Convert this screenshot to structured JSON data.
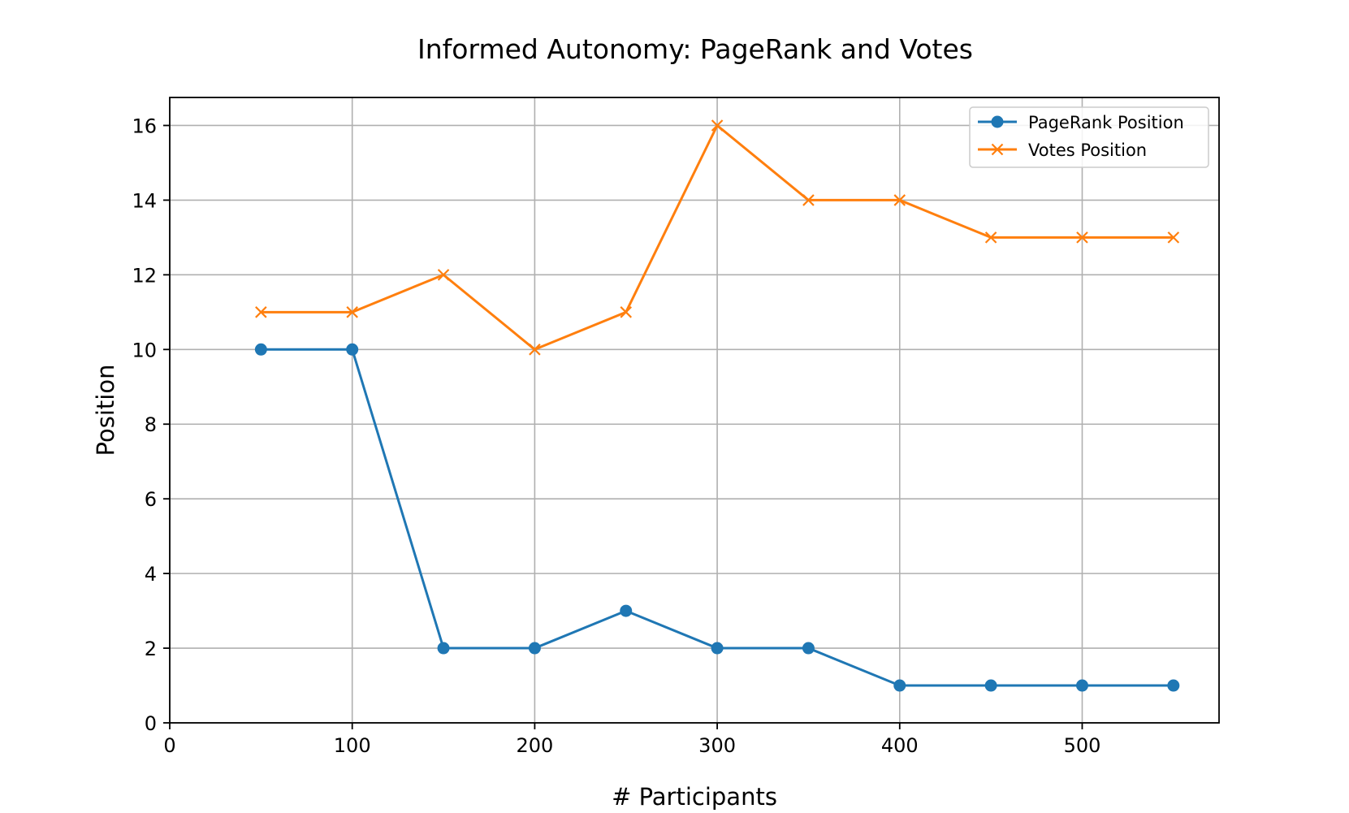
{
  "chart_data": {
    "type": "line",
    "title": "Informed Autonomy: PageRank and Votes",
    "xlabel": "# Participants",
    "ylabel": "Position",
    "x": [
      50,
      100,
      150,
      200,
      250,
      300,
      350,
      400,
      450,
      500,
      550
    ],
    "xlim": [
      0,
      575
    ],
    "ylim": [
      0,
      16.75
    ],
    "xticks": [
      0,
      100,
      200,
      300,
      400,
      500
    ],
    "yticks": [
      0,
      2,
      4,
      6,
      8,
      10,
      12,
      14,
      16
    ],
    "grid": true,
    "legend_position": "top-right",
    "series": [
      {
        "name": "PageRank Position",
        "values": [
          10,
          10,
          2,
          2,
          3,
          2,
          2,
          1,
          1,
          1,
          1
        ],
        "color": "#1f77b4",
        "marker": "circle"
      },
      {
        "name": "Votes Position",
        "values": [
          11,
          11,
          12,
          10,
          11,
          16,
          14,
          14,
          13,
          13,
          13
        ],
        "color": "#ff7f0e",
        "marker": "x"
      }
    ]
  }
}
